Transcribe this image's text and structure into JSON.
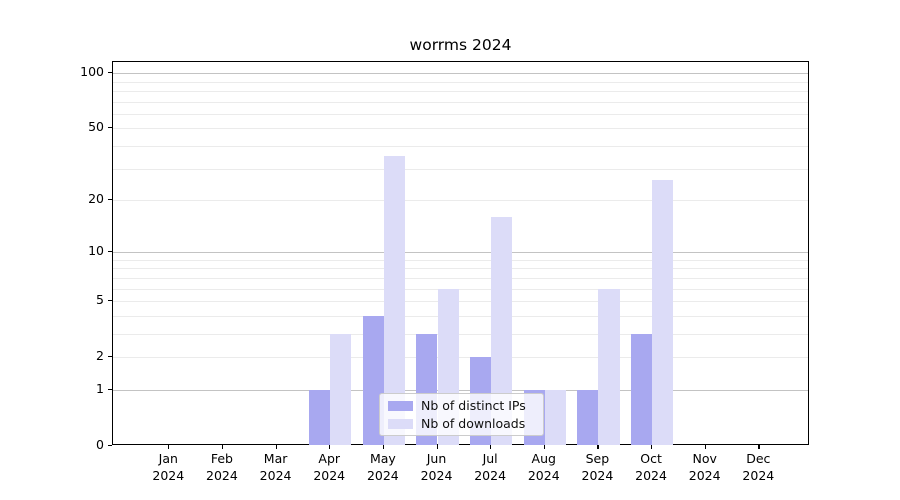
{
  "chart_data": {
    "type": "bar",
    "title": "worrms 2024",
    "categories": [
      "Jan",
      "Feb",
      "Mar",
      "Apr",
      "May",
      "Jun",
      "Jul",
      "Aug",
      "Sep",
      "Oct",
      "Nov",
      "Dec"
    ],
    "category_year": "2024",
    "series": [
      {
        "name": "Nb of distinct IPs",
        "color": "#a8a8f0",
        "values": [
          0,
          0,
          0,
          1,
          4,
          3,
          2,
          1,
          1,
          3,
          0,
          0
        ]
      },
      {
        "name": "Nb of downloads",
        "color": "#dcdcf8",
        "values": [
          0,
          0,
          0,
          3,
          35,
          6,
          16,
          1,
          6,
          26,
          0,
          0
        ]
      }
    ],
    "y_scale": "log1p",
    "y_ticks": [
      100,
      50,
      20,
      10,
      5,
      2,
      1,
      0
    ],
    "y_minor_gridlines": [
      2,
      3,
      4,
      5,
      6,
      7,
      8,
      9,
      20,
      30,
      40,
      50,
      60,
      70,
      80,
      90
    ],
    "y_major_gridlines": [
      1,
      10,
      100
    ],
    "ylim": [
      0,
      114
    ],
    "xlabel": "",
    "ylabel": "",
    "grid": true,
    "legend_position": "lower center"
  },
  "colors": {
    "background": "#ffffff",
    "spine": "#000000",
    "grid_minor": "#ebebeb",
    "grid_major": "#c3c3c3",
    "legend_border": "#cccccc"
  }
}
